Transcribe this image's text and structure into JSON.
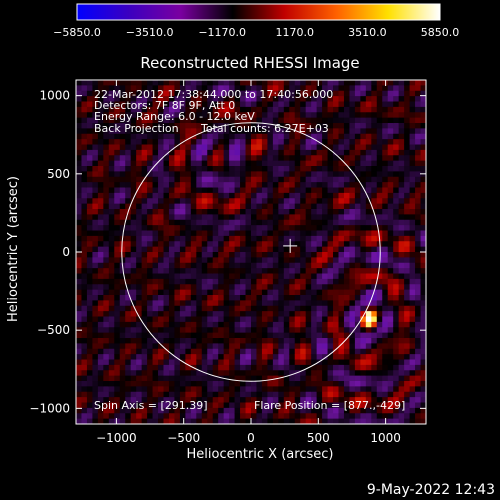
{
  "colorbar": {
    "tick_labels": [
      "−5850.0",
      "−3510.0",
      "−1170.0",
      "1170.0",
      "3510.0",
      "5850.0"
    ],
    "values": [
      -5850.0,
      -3510.0,
      -1170.0,
      1170.0,
      3510.0,
      5850.0
    ],
    "colors": [
      "#0000ff",
      "#3b00c0",
      "#7a00a0",
      "#000000",
      "#c00000",
      "#ff6000",
      "#ffe000",
      "#ffffff"
    ]
  },
  "chart_data": {
    "type": "heatmap",
    "title": "Reconstructed RHESSI Image",
    "xlabel": "Heliocentric X (arcsec)",
    "ylabel": "Heliocentric Y (arcsec)",
    "xlim": [
      -1300,
      1300
    ],
    "ylim": [
      -1100,
      1100
    ],
    "x_ticks": [
      -1000,
      -500,
      0,
      500,
      1000
    ],
    "x_tick_labels": [
      "−1000",
      "−500",
      "0",
      "500",
      "1000"
    ],
    "y_ticks": [
      1000,
      500,
      0,
      -500,
      -1000
    ],
    "y_tick_labels": [
      "1000",
      "500",
      "0",
      "−500",
      "−1000"
    ],
    "annotations": [
      "22-Mar-2012 17:38:44.000 to 17:40:56.000",
      "Detectors: 7F 8F 9F, Att 0",
      "Energy Range: 6.0 - 12.0 keV",
      "Back Projection",
      "Total counts: 6.27E+03"
    ],
    "footer_left": "Spin Axis = [291.39]",
    "footer_right": "Flare Position = [877.,-429]",
    "spin_axis": [
      291,
      39
    ],
    "flare_position": [
      877,
      -429
    ],
    "solar_limb_radius": 960,
    "grid": false
  },
  "timestamp": "9-May-2022 12:43"
}
